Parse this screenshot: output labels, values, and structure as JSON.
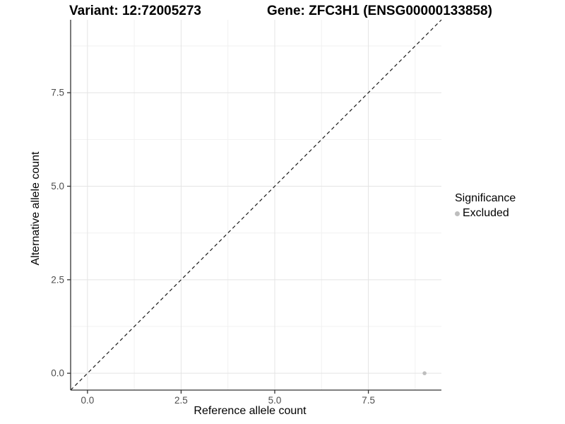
{
  "header": {
    "variant_title": "Variant: 12:72005273",
    "gene_title": "Gene: ZFC3H1 (ENSG00000133858)"
  },
  "axes": {
    "x_title": "Reference allele count",
    "y_title": "Alternative allele count"
  },
  "legend": {
    "title": "Significance",
    "items": [
      {
        "label": "Excluded",
        "color": "#bebebe"
      }
    ]
  },
  "chart_data": {
    "type": "scatter",
    "title": "Variant: 12:72005273 | Gene: ZFC3H1 (ENSG00000133858)",
    "xlabel": "Reference allele count",
    "ylabel": "Alternative allele count",
    "xlim": [
      -0.45,
      9.45
    ],
    "ylim": [
      -0.45,
      9.45
    ],
    "x_ticks": [
      0,
      2.5,
      5,
      7.5
    ],
    "y_ticks": [
      0,
      2.5,
      5,
      7.5
    ],
    "x_minor_ticks": [
      1.25,
      3.75,
      6.25,
      8.75
    ],
    "y_minor_ticks": [
      1.25,
      3.75,
      6.25,
      8.75
    ],
    "tick_format_decimals": 1,
    "grid": true,
    "legend_position": "right",
    "series": [
      {
        "name": "Excluded",
        "color": "#bebebe",
        "points": [
          {
            "x": 9,
            "y": 0
          }
        ]
      }
    ],
    "reference_line": {
      "kind": "identity",
      "x1": -0.45,
      "y1": -0.45,
      "x2": 9.45,
      "y2": 9.45,
      "style": "dashed",
      "color": "#1a1a1a"
    },
    "colors": {
      "major_grid": "#e4e4e4",
      "minor_grid": "#f1f1f1",
      "axis_line": "#333333",
      "tick_label": "#4d4d4d",
      "point": "#bebebe"
    }
  }
}
